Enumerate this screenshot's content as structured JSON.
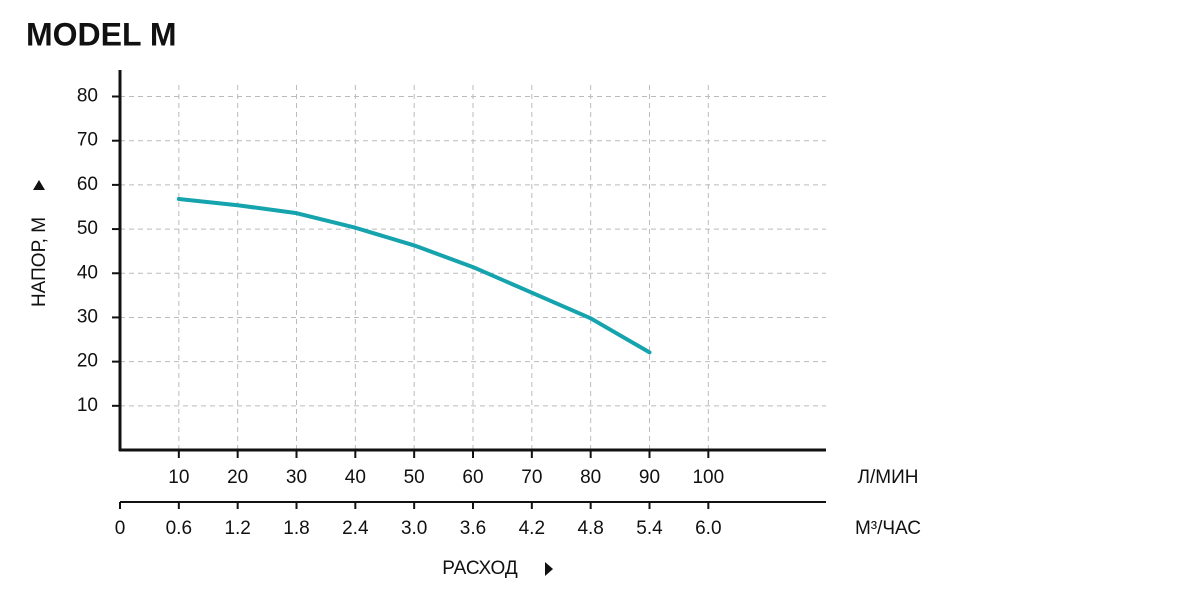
{
  "chart_data": {
    "type": "line",
    "title": "MODEL M",
    "y_label": "НАПОР, М",
    "x_label": "РАСХОД",
    "x_unit": "Л/МИН",
    "x2_unit": "М³/ЧАС",
    "xlim": [
      0,
      120
    ],
    "xticks": [
      10,
      20,
      30,
      40,
      50,
      60,
      70,
      80,
      90,
      100
    ],
    "x2lim": [
      0,
      7.2
    ],
    "x2ticks": [
      0,
      0.6,
      1.2,
      1.8,
      2.4,
      {
        "value": 3,
        "label": "3.0"
      },
      3.6,
      4.2,
      4.8,
      5.4,
      {
        "value": 6,
        "label": "6.0"
      }
    ],
    "ylim": [
      0,
      86
    ],
    "yticks": [
      10,
      20,
      30,
      40,
      50,
      60,
      70,
      80
    ],
    "grid": true,
    "x": [
      10,
      20,
      30,
      40,
      50,
      60,
      70,
      80,
      90
    ],
    "series": [
      {
        "color": "#15a3ad",
        "values": [
          56.8,
          55.4,
          53.6,
          50.3,
          46.3,
          41.4,
          35.6,
          29.8,
          22.1
        ]
      }
    ]
  }
}
